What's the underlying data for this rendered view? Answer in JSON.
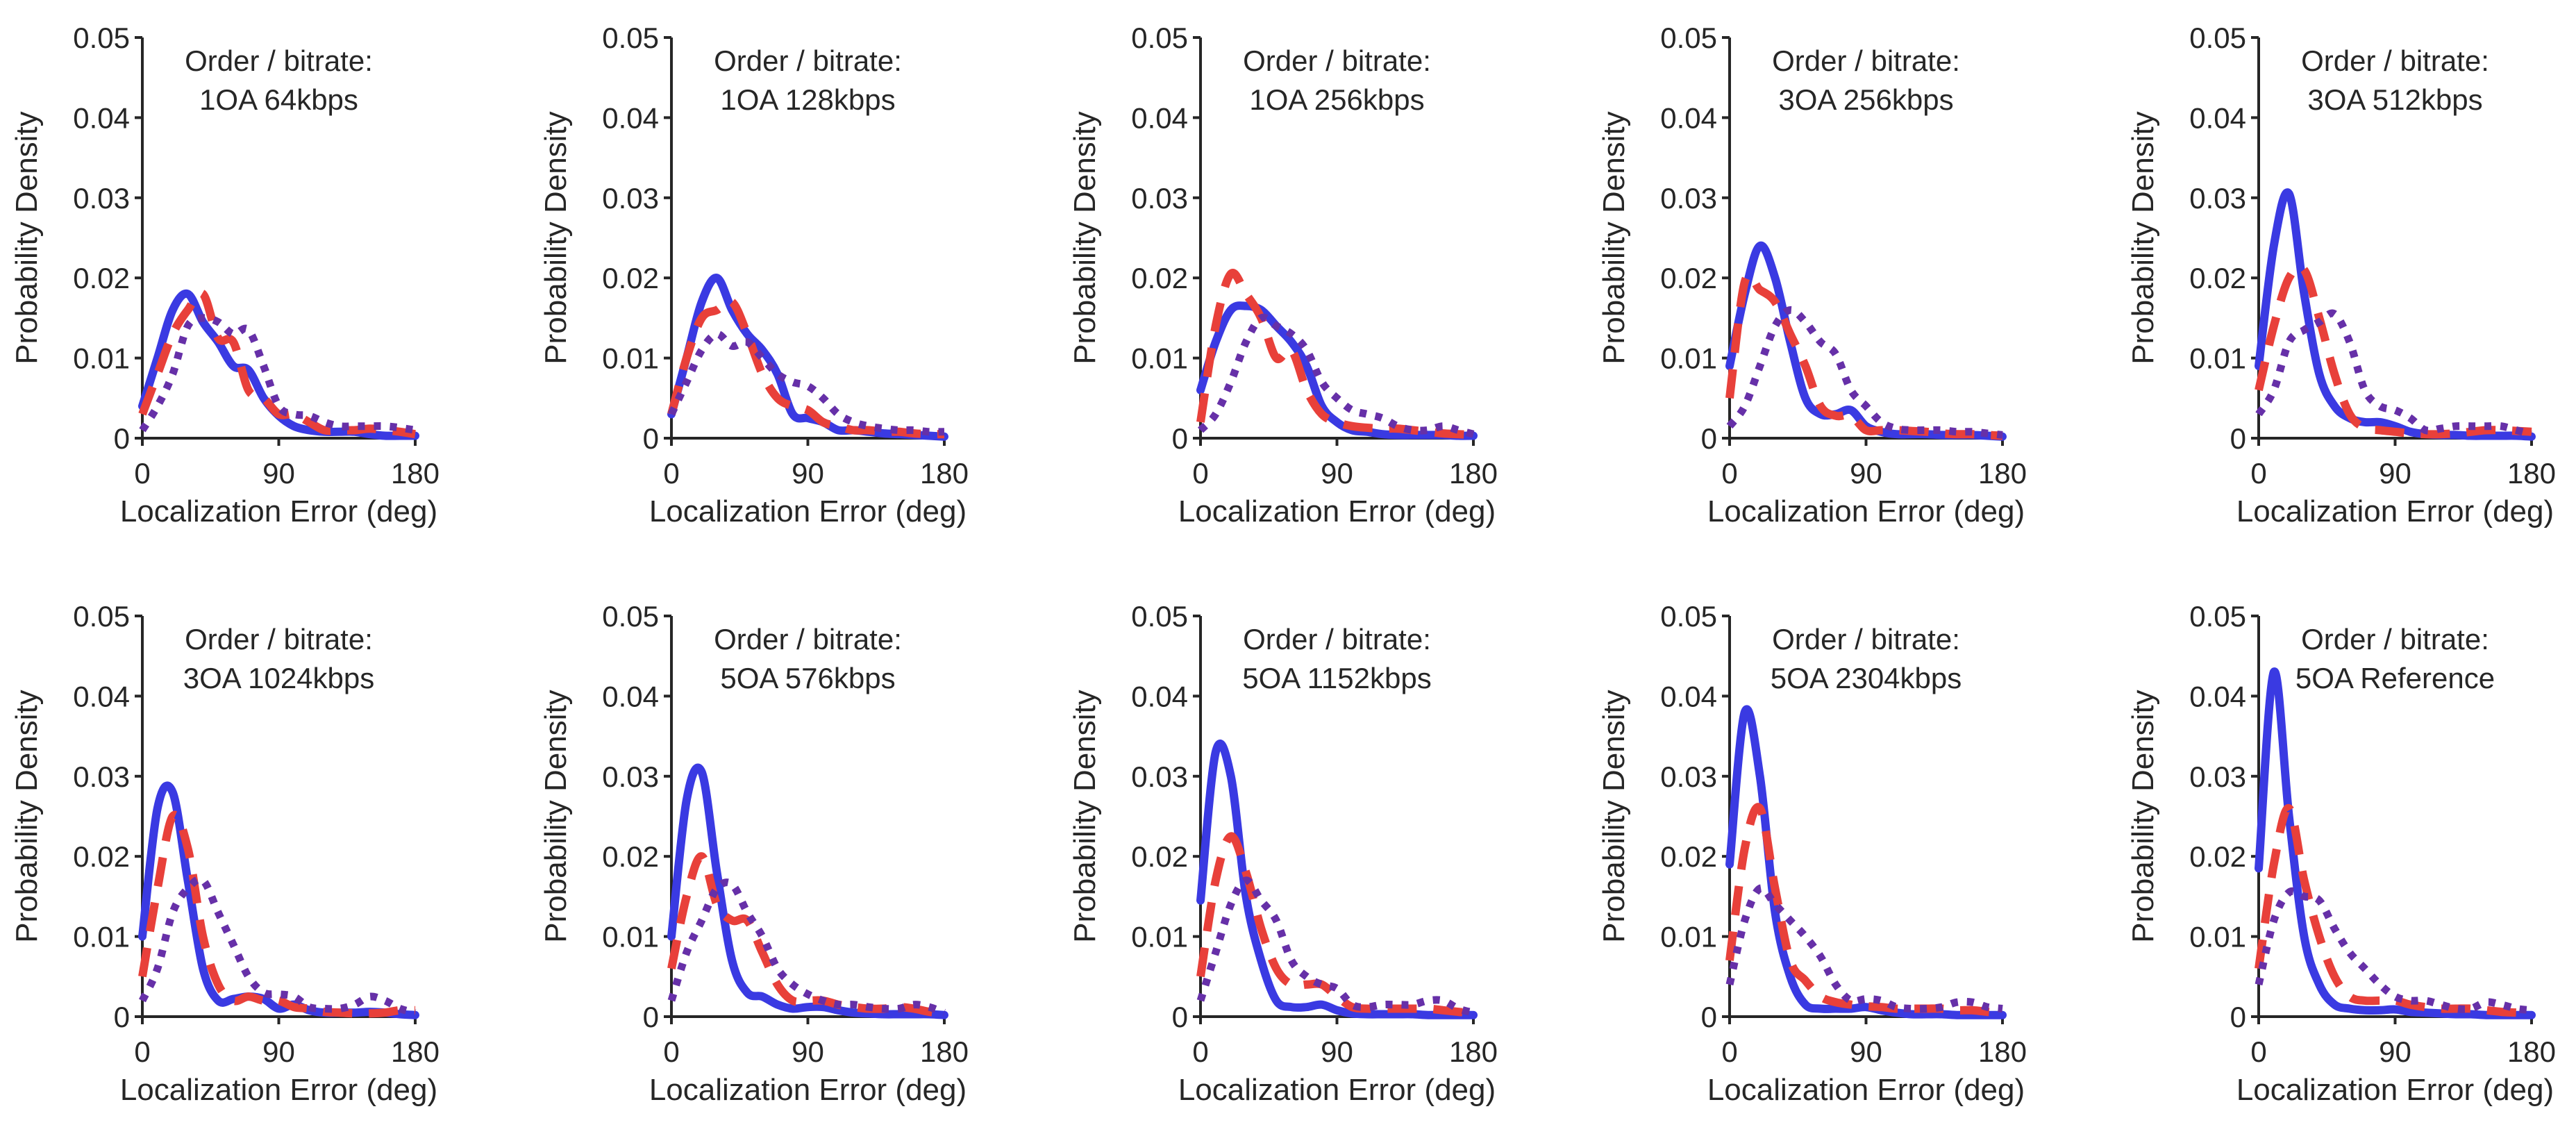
{
  "figure": {
    "ylabel": "Probability Density",
    "xlabel": "Localization Error (deg)",
    "x_ticks": [
      "0",
      "90",
      "180"
    ],
    "y_ticks": [
      "0",
      "0.01",
      "0.02",
      "0.03",
      "0.04",
      "0.05"
    ],
    "xlim": [
      0,
      180
    ],
    "ylim": [
      0,
      0.05
    ],
    "grid": "off",
    "legend": "none",
    "title_prefix": "Order / bitrate:",
    "colors": {
      "axis": "#262626",
      "solid": "#3a3ae2",
      "dashed": "#e8403a",
      "dotted": "#6630a8"
    },
    "x_values": [
      0,
      10,
      20,
      30,
      40,
      50,
      60,
      70,
      80,
      90,
      100,
      110,
      120,
      130,
      140,
      150,
      160,
      170,
      180
    ]
  },
  "chart_data": [
    {
      "type": "line",
      "title": "Order / bitrate:",
      "subtitle": "1OA 64kbps",
      "series": [
        {
          "name": "solid",
          "values": [
            0.004,
            0.01,
            0.016,
            0.018,
            0.0145,
            0.012,
            0.009,
            0.0085,
            0.005,
            0.0028,
            0.0015,
            0.001,
            0.0008,
            0.0008,
            0.0008,
            0.0005,
            0.0003,
            0.0003,
            0.0003
          ]
        },
        {
          "name": "dashed",
          "values": [
            0.003,
            0.008,
            0.013,
            0.016,
            0.018,
            0.0125,
            0.012,
            0.006,
            0.005,
            0.003,
            0.003,
            0.002,
            0.001,
            0.001,
            0.001,
            0.0012,
            0.001,
            0.0008,
            0.0005
          ]
        },
        {
          "name": "dotted",
          "values": [
            0.001,
            0.004,
            0.008,
            0.014,
            0.015,
            0.0145,
            0.013,
            0.0135,
            0.009,
            0.004,
            0.003,
            0.0028,
            0.002,
            0.0015,
            0.0015,
            0.0015,
            0.0015,
            0.0013,
            0.001
          ]
        }
      ]
    },
    {
      "type": "line",
      "title": "Order / bitrate:",
      "subtitle": "1OA 128kbps",
      "series": [
        {
          "name": "solid",
          "values": [
            0.003,
            0.01,
            0.017,
            0.02,
            0.016,
            0.013,
            0.011,
            0.008,
            0.003,
            0.0025,
            0.002,
            0.001,
            0.001,
            0.0008,
            0.0006,
            0.0005,
            0.0004,
            0.0003,
            0.0002
          ]
        },
        {
          "name": "dashed",
          "values": [
            0.003,
            0.01,
            0.015,
            0.016,
            0.017,
            0.013,
            0.008,
            0.005,
            0.004,
            0.0035,
            0.002,
            0.0015,
            0.001,
            0.001,
            0.0008,
            0.0008,
            0.0006,
            0.0005,
            0.0005
          ]
        },
        {
          "name": "dotted",
          "values": [
            0.003,
            0.007,
            0.011,
            0.013,
            0.0115,
            0.012,
            0.01,
            0.008,
            0.007,
            0.0065,
            0.005,
            0.003,
            0.002,
            0.0015,
            0.0012,
            0.001,
            0.001,
            0.0008,
            0.0008
          ]
        }
      ]
    },
    {
      "type": "line",
      "title": "Order / bitrate:",
      "subtitle": "1OA 256kbps",
      "series": [
        {
          "name": "solid",
          "values": [
            0.006,
            0.012,
            0.016,
            0.0165,
            0.016,
            0.014,
            0.012,
            0.009,
            0.004,
            0.002,
            0.001,
            0.0008,
            0.0005,
            0.0004,
            0.0004,
            0.0004,
            0.0004,
            0.0003,
            0.0003
          ]
        },
        {
          "name": "dashed",
          "values": [
            0.002,
            0.014,
            0.0205,
            0.018,
            0.015,
            0.01,
            0.011,
            0.006,
            0.003,
            0.002,
            0.0015,
            0.0013,
            0.0012,
            0.0012,
            0.001,
            0.0008,
            0.0006,
            0.0005,
            0.0004
          ]
        },
        {
          "name": "dotted",
          "values": [
            0.001,
            0.003,
            0.007,
            0.012,
            0.015,
            0.014,
            0.013,
            0.011,
            0.007,
            0.005,
            0.0035,
            0.003,
            0.0025,
            0.0015,
            0.001,
            0.001,
            0.0015,
            0.001,
            0.0005
          ]
        }
      ]
    },
    {
      "type": "line",
      "title": "Order / bitrate:",
      "subtitle": "3OA 256kbps",
      "series": [
        {
          "name": "solid",
          "values": [
            0.009,
            0.018,
            0.024,
            0.02,
            0.012,
            0.005,
            0.003,
            0.003,
            0.0035,
            0.0015,
            0.0008,
            0.0005,
            0.0005,
            0.0005,
            0.0004,
            0.0004,
            0.0004,
            0.0003,
            0.0002
          ]
        },
        {
          "name": "dashed",
          "values": [
            0.005,
            0.0195,
            0.0185,
            0.017,
            0.013,
            0.009,
            0.004,
            0.0028,
            0.0028,
            0.001,
            0.001,
            0.001,
            0.0009,
            0.0008,
            0.0006,
            0.0005,
            0.0005,
            0.0004,
            0.0003
          ]
        },
        {
          "name": "dotted",
          "values": [
            0.0015,
            0.004,
            0.009,
            0.014,
            0.016,
            0.0145,
            0.012,
            0.0105,
            0.006,
            0.004,
            0.002,
            0.0012,
            0.001,
            0.001,
            0.001,
            0.0008,
            0.0008,
            0.0006,
            0.0004
          ]
        }
      ]
    },
    {
      "type": "line",
      "title": "Order / bitrate:",
      "subtitle": "3OA 512kbps",
      "series": [
        {
          "name": "solid",
          "values": [
            0.009,
            0.024,
            0.0305,
            0.018,
            0.008,
            0.004,
            0.0025,
            0.002,
            0.002,
            0.0015,
            0.0008,
            0.0005,
            0.0004,
            0.0004,
            0.0003,
            0.0003,
            0.0003,
            0.0003,
            0.0002
          ]
        },
        {
          "name": "dashed",
          "values": [
            0.006,
            0.014,
            0.02,
            0.021,
            0.015,
            0.008,
            0.003,
            0.0013,
            0.001,
            0.0008,
            0.0006,
            0.0005,
            0.0005,
            0.0006,
            0.0008,
            0.001,
            0.001,
            0.0009,
            0.0008
          ]
        },
        {
          "name": "dotted",
          "values": [
            0.003,
            0.006,
            0.012,
            0.0135,
            0.0145,
            0.0155,
            0.012,
            0.006,
            0.004,
            0.0035,
            0.0025,
            0.001,
            0.0012,
            0.0015,
            0.0015,
            0.0015,
            0.0015,
            0.001,
            0.0005
          ]
        }
      ]
    },
    {
      "type": "line",
      "title": "Order / bitrate:",
      "subtitle": "3OA 1024kbps",
      "series": [
        {
          "name": "solid",
          "values": [
            0.01,
            0.026,
            0.028,
            0.017,
            0.006,
            0.002,
            0.0022,
            0.0025,
            0.0022,
            0.001,
            0.0015,
            0.0008,
            0.0005,
            0.0005,
            0.0005,
            0.0006,
            0.0005,
            0.0003,
            0.0002
          ]
        },
        {
          "name": "dashed",
          "values": [
            0.005,
            0.016,
            0.025,
            0.021,
            0.01,
            0.004,
            0.002,
            0.0025,
            0.002,
            0.002,
            0.0012,
            0.001,
            0.0006,
            0.0005,
            0.0004,
            0.0004,
            0.0005,
            0.0008,
            0.0008
          ]
        },
        {
          "name": "dotted",
          "values": [
            0.002,
            0.006,
            0.013,
            0.016,
            0.017,
            0.013,
            0.009,
            0.005,
            0.003,
            0.0028,
            0.0025,
            0.0012,
            0.001,
            0.001,
            0.0015,
            0.0025,
            0.002,
            0.001,
            0.0005
          ]
        }
      ]
    },
    {
      "type": "line",
      "title": "Order / bitrate:",
      "subtitle": "5OA 576kbps",
      "series": [
        {
          "name": "solid",
          "values": [
            0.01,
            0.027,
            0.0305,
            0.018,
            0.007,
            0.003,
            0.0025,
            0.0015,
            0.001,
            0.0012,
            0.0012,
            0.0008,
            0.0005,
            0.0004,
            0.0003,
            0.0003,
            0.0003,
            0.0003,
            0.0002
          ]
        },
        {
          "name": "dashed",
          "values": [
            0.006,
            0.015,
            0.02,
            0.014,
            0.012,
            0.012,
            0.008,
            0.004,
            0.002,
            0.002,
            0.002,
            0.0015,
            0.0012,
            0.001,
            0.001,
            0.0012,
            0.001,
            0.0006,
            0.0004
          ]
        },
        {
          "name": "dotted",
          "values": [
            0.002,
            0.008,
            0.012,
            0.016,
            0.0165,
            0.013,
            0.01,
            0.006,
            0.004,
            0.0028,
            0.002,
            0.0015,
            0.0015,
            0.0012,
            0.001,
            0.001,
            0.0015,
            0.0012,
            0.0005
          ]
        }
      ]
    },
    {
      "type": "line",
      "title": "Order / bitrate:",
      "subtitle": "5OA 1152kbps",
      "series": [
        {
          "name": "solid",
          "values": [
            0.0145,
            0.033,
            0.03,
            0.015,
            0.007,
            0.002,
            0.0012,
            0.0012,
            0.0015,
            0.0008,
            0.0004,
            0.0003,
            0.0003,
            0.0003,
            0.0003,
            0.0002,
            0.0002,
            0.0002,
            0.0002
          ]
        },
        {
          "name": "dashed",
          "values": [
            0.005,
            0.017,
            0.0225,
            0.018,
            0.011,
            0.006,
            0.004,
            0.004,
            0.004,
            0.0025,
            0.0012,
            0.001,
            0.001,
            0.001,
            0.001,
            0.001,
            0.0008,
            0.0006,
            0.0004
          ]
        },
        {
          "name": "dotted",
          "values": [
            0.002,
            0.008,
            0.014,
            0.017,
            0.0145,
            0.012,
            0.007,
            0.005,
            0.004,
            0.0035,
            0.0015,
            0.0012,
            0.0015,
            0.0015,
            0.0015,
            0.002,
            0.002,
            0.001,
            0.0005
          ]
        }
      ]
    },
    {
      "type": "line",
      "title": "Order / bitrate:",
      "subtitle": "5OA 2304kbps",
      "series": [
        {
          "name": "solid",
          "values": [
            0.019,
            0.038,
            0.03,
            0.013,
            0.005,
            0.0015,
            0.001,
            0.001,
            0.001,
            0.0012,
            0.0008,
            0.0005,
            0.0003,
            0.0003,
            0.0003,
            0.0002,
            0.0002,
            0.0002,
            0.0002
          ]
        },
        {
          "name": "dashed",
          "values": [
            0.007,
            0.021,
            0.026,
            0.016,
            0.007,
            0.0045,
            0.0025,
            0.0018,
            0.0015,
            0.0013,
            0.0012,
            0.001,
            0.001,
            0.001,
            0.001,
            0.0008,
            0.0008,
            0.0006,
            0.0004
          ]
        },
        {
          "name": "dotted",
          "values": [
            0.004,
            0.012,
            0.016,
            0.014,
            0.012,
            0.01,
            0.0075,
            0.004,
            0.002,
            0.0022,
            0.002,
            0.0012,
            0.001,
            0.001,
            0.0012,
            0.0018,
            0.0018,
            0.0012,
            0.001
          ]
        }
      ]
    },
    {
      "type": "line",
      "title": "Order / bitrate:",
      "subtitle": "5OA Reference",
      "series": [
        {
          "name": "solid",
          "values": [
            0.0185,
            0.043,
            0.025,
            0.01,
            0.004,
            0.0015,
            0.001,
            0.0008,
            0.0008,
            0.0009,
            0.0006,
            0.0005,
            0.0004,
            0.0003,
            0.0003,
            0.0002,
            0.0002,
            0.0002,
            0.0002
          ]
        },
        {
          "name": "dashed",
          "values": [
            0.006,
            0.019,
            0.026,
            0.017,
            0.01,
            0.005,
            0.0025,
            0.002,
            0.002,
            0.002,
            0.0015,
            0.0012,
            0.001,
            0.001,
            0.001,
            0.0008,
            0.0006,
            0.0005,
            0.0004
          ]
        },
        {
          "name": "dotted",
          "values": [
            0.004,
            0.012,
            0.0155,
            0.015,
            0.0145,
            0.011,
            0.008,
            0.006,
            0.004,
            0.0025,
            0.002,
            0.002,
            0.0015,
            0.001,
            0.001,
            0.0018,
            0.0015,
            0.001,
            0.0008
          ]
        }
      ]
    }
  ]
}
